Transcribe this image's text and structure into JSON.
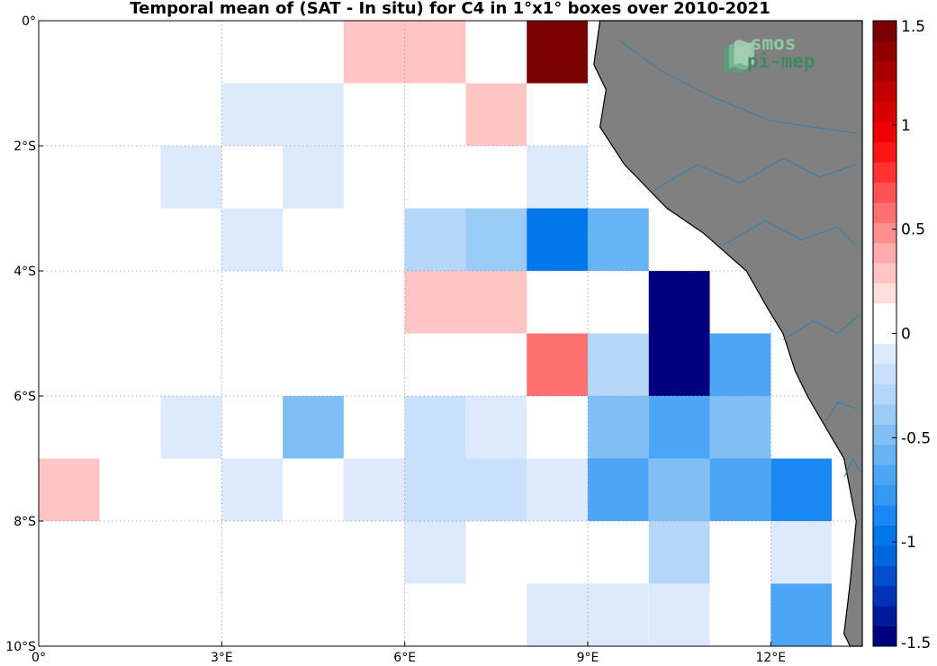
{
  "title": "Temporal mean of (SAT - In situ) for C4 in 1°x1° boxes over 2010-2021",
  "map": {
    "lon_range": [
      0,
      13.5
    ],
    "lat_range": [
      -10,
      0
    ],
    "x_ticks": [
      {
        "value": 0,
        "label": "0°"
      },
      {
        "value": 3,
        "label": "3°E"
      },
      {
        "value": 6,
        "label": "6°E"
      },
      {
        "value": 9,
        "label": "9°E"
      },
      {
        "value": 12,
        "label": "12°E"
      }
    ],
    "y_ticks": [
      {
        "value": 0,
        "label": "0°"
      },
      {
        "value": -2,
        "label": "2°S"
      },
      {
        "value": -4,
        "label": "4°S"
      },
      {
        "value": -6,
        "label": "6°S"
      },
      {
        "value": -8,
        "label": "8°S"
      },
      {
        "value": -10,
        "label": "10°S"
      }
    ],
    "grid": true,
    "land_color": "#808080",
    "river_color": "#2c7fb8",
    "coast_color": "#000000",
    "coastline": [
      [
        9.2,
        0
      ],
      [
        9.1,
        -0.7
      ],
      [
        9.3,
        -1.1
      ],
      [
        9.2,
        -1.7
      ],
      [
        9.6,
        -2.3
      ],
      [
        10.3,
        -3
      ],
      [
        10.9,
        -3.4
      ],
      [
        11.6,
        -4
      ],
      [
        11.95,
        -4.6
      ],
      [
        12.2,
        -5
      ],
      [
        12.4,
        -5.6
      ],
      [
        12.6,
        -6
      ],
      [
        12.9,
        -6.5
      ],
      [
        13.2,
        -7
      ],
      [
        13.4,
        -8
      ],
      [
        13.3,
        -9
      ],
      [
        13.2,
        -9.8
      ],
      [
        13.3,
        -10
      ],
      [
        13.5,
        -10
      ],
      [
        13.5,
        0
      ]
    ]
  },
  "logo": {
    "line1": "smos",
    "line2": "pi-mep"
  },
  "chart_data": {
    "type": "heatmap",
    "title": "Temporal mean of (SAT - In situ) for C4 in 1°x1° boxes over 2010-2021",
    "x_unit": "degrees east",
    "y_unit": "degrees north",
    "cells": [
      {
        "lon": 0,
        "lat": -1,
        "value": 0.1
      },
      {
        "lon": 3,
        "lat": -1,
        "value": 0.1
      },
      {
        "lon": 5,
        "lat": -1,
        "value": 0.25
      },
      {
        "lon": 6,
        "lat": -1,
        "value": 0.25
      },
      {
        "lon": 8,
        "lat": -1,
        "value": 1.5
      },
      {
        "lon": 1,
        "lat": -2,
        "value": 0.1
      },
      {
        "lon": 3,
        "lat": -2,
        "value": -0.1
      },
      {
        "lon": 4,
        "lat": -2,
        "value": -0.1
      },
      {
        "lon": 5,
        "lat": -2,
        "value": 0.1
      },
      {
        "lon": 7,
        "lat": -2,
        "value": 0.25
      },
      {
        "lon": 8,
        "lat": -2,
        "value": 0.1
      },
      {
        "lon": 2,
        "lat": -3,
        "value": -0.1
      },
      {
        "lon": 4,
        "lat": -3,
        "value": -0.1
      },
      {
        "lon": 7,
        "lat": -3,
        "value": 0.1
      },
      {
        "lon": 8,
        "lat": -3,
        "value": -0.1
      },
      {
        "lon": 0,
        "lat": -4,
        "value": 0.1
      },
      {
        "lon": 3,
        "lat": -4,
        "value": -0.1
      },
      {
        "lon": 6,
        "lat": -4,
        "value": -0.25
      },
      {
        "lon": 7,
        "lat": -4,
        "value": -0.35
      },
      {
        "lon": 8,
        "lat": -4,
        "value": -1.0
      },
      {
        "lon": 9,
        "lat": -4,
        "value": -0.55
      },
      {
        "lon": 5,
        "lat": -5,
        "value": 0.1
      },
      {
        "lon": 6,
        "lat": -5,
        "value": 0.25
      },
      {
        "lon": 7,
        "lat": -5,
        "value": 0.25
      },
      {
        "lon": 10,
        "lat": -5,
        "value": -1.5
      },
      {
        "lon": 0,
        "lat": -6,
        "value": 0.1
      },
      {
        "lon": 2,
        "lat": -6,
        "value": 0.1
      },
      {
        "lon": 8,
        "lat": -6,
        "value": 0.55
      },
      {
        "lon": 9,
        "lat": -6,
        "value": -0.25
      },
      {
        "lon": 10,
        "lat": -6,
        "value": -1.5
      },
      {
        "lon": 11,
        "lat": -6,
        "value": -0.7
      },
      {
        "lon": 2,
        "lat": -7,
        "value": -0.1
      },
      {
        "lon": 4,
        "lat": -7,
        "value": -0.45
      },
      {
        "lon": 6,
        "lat": -7,
        "value": -0.2
      },
      {
        "lon": 7,
        "lat": -7,
        "value": -0.1
      },
      {
        "lon": 9,
        "lat": -7,
        "value": -0.45
      },
      {
        "lon": 10,
        "lat": -7,
        "value": -0.7
      },
      {
        "lon": 11,
        "lat": -7,
        "value": -0.5
      },
      {
        "lon": 0,
        "lat": -8,
        "value": 0.25
      },
      {
        "lon": 1,
        "lat": -8,
        "value": 0.1
      },
      {
        "lon": 3,
        "lat": -8,
        "value": -0.1
      },
      {
        "lon": 5,
        "lat": -8,
        "value": -0.1
      },
      {
        "lon": 6,
        "lat": -8,
        "value": -0.2
      },
      {
        "lon": 7,
        "lat": -8,
        "value": -0.2
      },
      {
        "lon": 8,
        "lat": -8,
        "value": -0.1
      },
      {
        "lon": 9,
        "lat": -8,
        "value": -0.7
      },
      {
        "lon": 10,
        "lat": -8,
        "value": -0.45
      },
      {
        "lon": 11,
        "lat": -8,
        "value": -0.7
      },
      {
        "lon": 12,
        "lat": -8,
        "value": -0.85
      },
      {
        "lon": 2,
        "lat": -9,
        "value": 0.1
      },
      {
        "lon": 4,
        "lat": -9,
        "value": 0.1
      },
      {
        "lon": 6,
        "lat": -9,
        "value": -0.1
      },
      {
        "lon": 10,
        "lat": -9,
        "value": -0.25
      },
      {
        "lon": 12,
        "lat": -9,
        "value": -0.1
      },
      {
        "lon": 8,
        "lat": -10,
        "value": -0.1
      },
      {
        "lon": 9,
        "lat": -10,
        "value": -0.1
      },
      {
        "lon": 10,
        "lat": -10,
        "value": -0.1
      },
      {
        "lon": 12,
        "lat": -10,
        "value": -0.7
      }
    ],
    "colorbar": {
      "min": -1.5,
      "max": 1.5,
      "ticks": [
        {
          "value": 1.5,
          "label": "1.5"
        },
        {
          "value": 1,
          "label": "1"
        },
        {
          "value": 0.5,
          "label": "0.5"
        },
        {
          "value": 0,
          "label": "0"
        },
        {
          "value": -0.5,
          "label": "-0.5"
        },
        {
          "value": -1,
          "label": "-1"
        },
        {
          "value": -1.5,
          "label": "-1.5"
        }
      ],
      "colors": [
        "#00007f",
        "#001a9c",
        "#0033b8",
        "#004dcf",
        "#0066e0",
        "#0077eb",
        "#1a88f2",
        "#3399f5",
        "#4da6f5",
        "#66b3f5",
        "#80bff5",
        "#99ccf7",
        "#b3d6f9",
        "#c8e0fb",
        "#dde9fc",
        "#ffffff",
        "#ffffff",
        "#ffdede",
        "#ffc4c4",
        "#ffabab",
        "#ff8f8f",
        "#ff7070",
        "#ff5252",
        "#ff3333",
        "#ff1414",
        "#f00000",
        "#d90000",
        "#c20000",
        "#a80000",
        "#8f0000",
        "#7a0000"
      ]
    }
  }
}
